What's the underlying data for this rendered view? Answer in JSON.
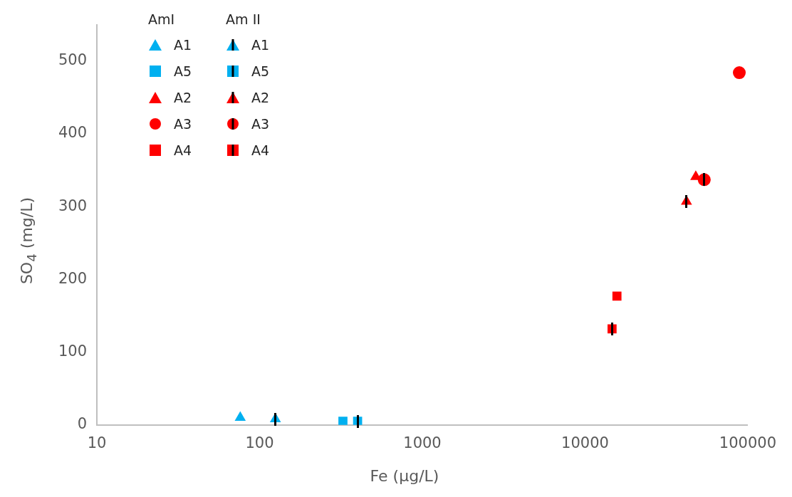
{
  "chart_data": {
    "type": "scatter",
    "xlabel": "Fe (µg/L)",
    "ylabel": "SO$_{4}$ (mg/L)",
    "log": "x",
    "xlim": [
      10,
      100000
    ],
    "xticks": [
      10,
      100,
      1000,
      10000,
      100000
    ],
    "ylim": [
      0,
      550
    ],
    "yticks": [
      0,
      100,
      200,
      300,
      400,
      500
    ],
    "grid": false,
    "legend": "top left",
    "annotations": [
      "AmI",
      "Am II"
    ],
    "series": [
      {
        "name": "A1",
        "color": "#00b0f0",
        "marker": "triangle",
        "x": [
          76
        ],
        "values": [
          10
        ]
      },
      {
        "name": "A5",
        "color": "#00b0f0",
        "marker": "square",
        "x": [
          325
        ],
        "values": [
          5
        ]
      },
      {
        "name": "A2",
        "color": "#ff0000",
        "marker": "triangle",
        "x": [
          47900
        ],
        "values": [
          341
        ]
      },
      {
        "name": "A3",
        "color": "#ff0000",
        "marker": "circle",
        "x": [
          88700
        ],
        "values": [
          484
        ]
      },
      {
        "name": "A4",
        "color": "#ff0000",
        "marker": "square",
        "x": [
          15700
        ],
        "values": [
          177
        ]
      },
      {
        "name": "A1",
        "color": "#00b0f0",
        "marker": "triangle",
        "x": [
          125
        ],
        "values": [
          8
        ]
      },
      {
        "name": "A5",
        "color": "#00b0f0",
        "marker": "square",
        "x": [
          400
        ],
        "values": [
          5
        ]
      },
      {
        "name": "A2",
        "color": "#ff0000",
        "marker": "triangle",
        "x": [
          42000
        ],
        "values": [
          307
        ]
      },
      {
        "name": "A3",
        "color": "#ff0000",
        "marker": "circle",
        "x": [
          54000
        ],
        "values": [
          337
        ]
      },
      {
        "name": "A4",
        "color": "#ff0000",
        "marker": "square",
        "x": [
          14650
        ],
        "values": [
          132
        ]
      }
    ]
  }
}
